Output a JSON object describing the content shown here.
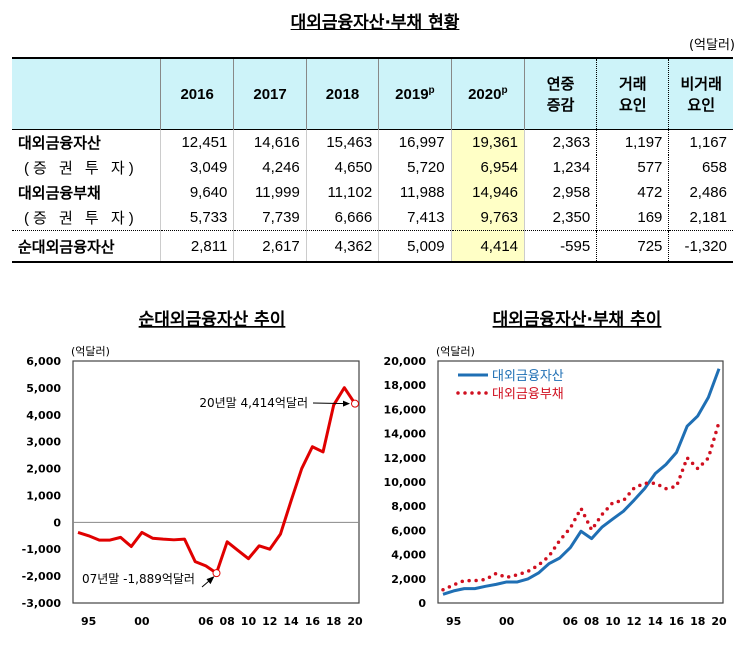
{
  "table": {
    "title": "대외금융자산·부채 현황",
    "unit": "(억달러)",
    "headers": [
      "",
      "2016",
      "2017",
      "2018",
      "2019",
      "2020",
      "연중 증감",
      "거래 요인",
      "비거래 요인"
    ],
    "prelim_mark": "p",
    "rows": [
      {
        "label": "대외금융자산",
        "values": [
          "12,451",
          "14,616",
          "15,463",
          "16,997",
          "19,361",
          "2,363",
          "1,197",
          "1,167"
        ]
      },
      {
        "label": "(증 권 투 자)",
        "values": [
          "3,049",
          "4,246",
          "4,650",
          "5,720",
          "6,954",
          "1,234",
          "577",
          "658"
        ]
      },
      {
        "label": "대외금융부채",
        "values": [
          "9,640",
          "11,999",
          "11,102",
          "11,988",
          "14,946",
          "2,958",
          "472",
          "2,486"
        ]
      },
      {
        "label": "(증 권 투 자)",
        "values": [
          "5,733",
          "7,739",
          "6,666",
          "7,413",
          "9,763",
          "2,350",
          "169",
          "2,181"
        ]
      },
      {
        "label": "순대외금융자산",
        "values": [
          "2,811",
          "2,617",
          "4,362",
          "5,009",
          "4,414",
          "-595",
          "725",
          "-1,320"
        ]
      }
    ],
    "highlight_color": "#ffffc6",
    "header_color": "#cdf3f9"
  },
  "chart_data": [
    {
      "type": "line",
      "title": "순대외금융자산 추이",
      "ylabel": "(억달러)",
      "ylim": [
        -3000,
        6000
      ],
      "yticks": [
        "6,000",
        "5,000",
        "4,000",
        "3,000",
        "2,000",
        "1,000",
        "0",
        "-1,000",
        "-2,000",
        "-3,000"
      ],
      "xticks": [
        "95",
        "00",
        "06",
        "08",
        "10",
        "12",
        "14",
        "16",
        "18",
        "20"
      ],
      "x": [
        1994,
        1995,
        1996,
        1997,
        1998,
        1999,
        2000,
        2001,
        2002,
        2003,
        2004,
        2005,
        2006,
        2007,
        2008,
        2009,
        2010,
        2011,
        2012,
        2013,
        2014,
        2015,
        2016,
        2017,
        2018,
        2019,
        2020
      ],
      "series": [
        {
          "color": "#e00000",
          "values": [
            -375,
            -500,
            -660,
            -660,
            -560,
            -900,
            -375,
            -590,
            -625,
            -650,
            -625,
            -1460,
            -1620,
            -1889,
            -725,
            -1040,
            -1350,
            -875,
            -1000,
            -440,
            800,
            2000,
            2811,
            2617,
            4362,
            5009,
            4414
          ]
        }
      ],
      "annotations": [
        {
          "text": "20년말 4,414억달러",
          "x": 2020,
          "y": 4414
        },
        {
          "text": "07년말 -1,889억달러",
          "x": 2007,
          "y": -1889
        }
      ],
      "grid": false
    },
    {
      "type": "line",
      "title": "대외금융자산·부채 추이",
      "ylabel": "(억달러)",
      "ylim": [
        0,
        20000
      ],
      "yticks": [
        "20,000",
        "18,000",
        "16,000",
        "14,000",
        "12,000",
        "10,000",
        "8,000",
        "6,000",
        "4,000",
        "2,000",
        "0"
      ],
      "xticks": [
        "95",
        "00",
        "06",
        "08",
        "10",
        "12",
        "14",
        "16",
        "18",
        "20"
      ],
      "x": [
        1994,
        1995,
        1996,
        1997,
        1998,
        1999,
        2000,
        2001,
        2002,
        2003,
        2004,
        2005,
        2006,
        2007,
        2008,
        2009,
        2010,
        2011,
        2012,
        2013,
        2014,
        2015,
        2016,
        2017,
        2018,
        2019,
        2020
      ],
      "legend": "top-left",
      "series": [
        {
          "name": "대외금융자산",
          "color": "#1f6fb4",
          "style": "solid",
          "values": [
            720,
            1000,
            1190,
            1190,
            1380,
            1540,
            1740,
            1740,
            1990,
            2480,
            3260,
            3720,
            4580,
            5930,
            5320,
            6290,
            6950,
            7590,
            8500,
            9460,
            10700,
            11450,
            12451,
            14616,
            15463,
            16997,
            19361
          ]
        },
        {
          "name": "대외금융부채",
          "color": "#d01020",
          "style": "dotted",
          "values": [
            1095,
            1500,
            1850,
            1850,
            1940,
            2440,
            2115,
            2330,
            2615,
            3130,
            3885,
            5180,
            6200,
            7820,
            6045,
            7330,
            8300,
            8465,
            9500,
            9900,
            9900,
            9450,
            9640,
            11999,
            11102,
            11988,
            14946
          ]
        }
      ],
      "grid": false
    }
  ]
}
